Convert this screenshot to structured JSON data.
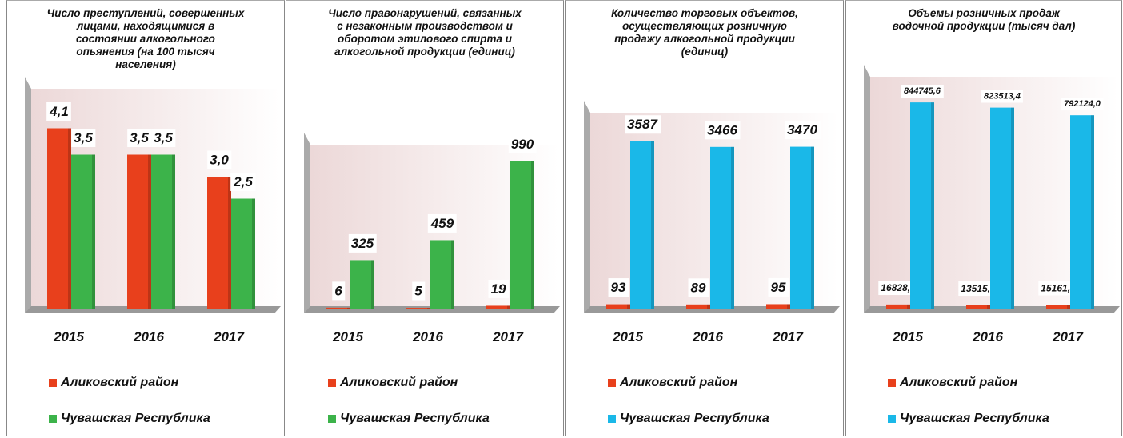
{
  "chart_data": [
    {
      "type": "bar",
      "title": "Число преступлений, совершенных лицами, находящимися в состоянии алкогольного опьянения (на 100 тысяч населения)",
      "categories": [
        "2015",
        "2016",
        "2017"
      ],
      "ylim": [
        0,
        5
      ],
      "series": [
        {
          "name": "Аликовский район",
          "color": "#e8401c",
          "values": [
            4.1,
            3.5,
            3.0
          ],
          "value_labels": [
            "4,1",
            "3,5",
            "3,0"
          ]
        },
        {
          "name": "Чувашская Республика",
          "color": "#3cb34a",
          "values": [
            3.5,
            3.5,
            2.5
          ],
          "value_labels": [
            "3,5",
            "3,5",
            "2,5"
          ]
        }
      ]
    },
    {
      "type": "bar",
      "title": "Число правонарушений, связанных с незаконным производством и оборотом этилового спирта и алкогольной продукции (единиц)",
      "categories": [
        "2015",
        "2016",
        "2017"
      ],
      "ylim": [
        0,
        1100
      ],
      "series": [
        {
          "name": "Аликовский район",
          "color": "#e8401c",
          "values": [
            6,
            5,
            19
          ]
        },
        {
          "name": "Чувашская Республика",
          "color": "#3cb34a",
          "values": [
            325,
            459,
            990
          ]
        }
      ]
    },
    {
      "type": "bar",
      "title": "Количество торговых объектов, осуществляющих розничную продажу алкогольной продукции (единиц)",
      "categories": [
        "2015",
        "2016",
        "2017"
      ],
      "ylim": [
        0,
        4200
      ],
      "series": [
        {
          "name": "Аликовский район",
          "color": "#e8401c",
          "values": [
            93,
            89,
            95
          ]
        },
        {
          "name": "Чувашская Республика",
          "color": "#1ab8e8",
          "values": [
            3587,
            3466,
            3470
          ]
        }
      ]
    },
    {
      "type": "bar",
      "title": "Объемы розничных продаж водочной продукции (тысяч дал)",
      "categories": [
        "2015",
        "2016",
        "2017"
      ],
      "ylim": [
        0,
        950000
      ],
      "series": [
        {
          "name": "Аликовский район",
          "color": "#e8401c",
          "values": [
            16828.5,
            13515.9,
            15161.4
          ],
          "value_labels": [
            "16828,5",
            "13515,9",
            "15161,4"
          ]
        },
        {
          "name": "Чувашская Республика",
          "color": "#1ab8e8",
          "values": [
            844745.6,
            823513.4,
            792124.0
          ],
          "value_labels": [
            "844745,6",
            "823513,4",
            "792124,0"
          ]
        }
      ]
    }
  ]
}
